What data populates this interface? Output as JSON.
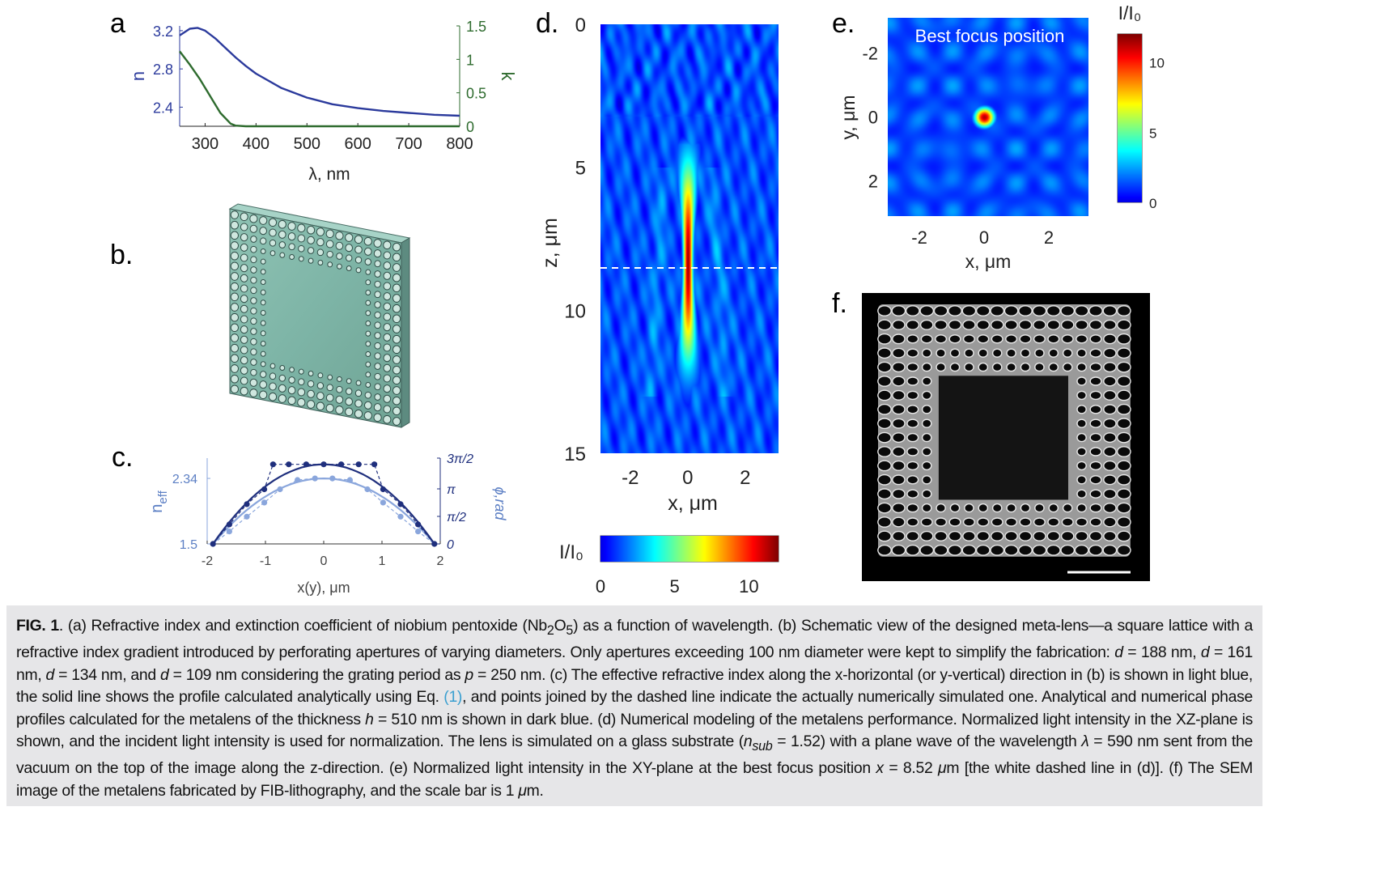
{
  "panel_labels": {
    "a": "a",
    "b": "b.",
    "c": "c.",
    "d": "d.",
    "e": "e.",
    "f": "f."
  },
  "colors": {
    "blue": "#2b3a9c",
    "green": "#2e6b2e",
    "light_blue": "#8aa6dc",
    "dark_blue": "#1f2f7d"
  },
  "chart_data": [
    {
      "id": "a",
      "type": "line",
      "xlabel": "λ, nm",
      "ylabel": "n",
      "y2label": "k",
      "xlim": [
        250,
        800
      ],
      "ylim": [
        2.2,
        3.25
      ],
      "y2lim": [
        0,
        1.5
      ],
      "xticks": [
        "300",
        "400",
        "500",
        "600",
        "700",
        "800"
      ],
      "yticks": [
        "3.2",
        "2.8",
        "2.4"
      ],
      "y2ticks": [
        "1.5",
        "1",
        "0.5",
        "0"
      ],
      "series": [
        {
          "axis": "left",
          "color": "#2b3a9c",
          "x": [
            250,
            270,
            285,
            300,
            320,
            340,
            360,
            380,
            400,
            450,
            500,
            550,
            600,
            650,
            700,
            750,
            800
          ],
          "y": [
            3.15,
            3.22,
            3.23,
            3.2,
            3.12,
            3.02,
            2.92,
            2.83,
            2.75,
            2.6,
            2.5,
            2.43,
            2.39,
            2.36,
            2.34,
            2.32,
            2.31
          ]
        },
        {
          "axis": "right",
          "color": "#2e6b2e",
          "x": [
            250,
            270,
            290,
            310,
            330,
            350,
            360,
            380,
            400,
            500,
            600,
            700,
            800
          ],
          "y": [
            1.12,
            0.92,
            0.7,
            0.45,
            0.2,
            0.04,
            0.01,
            0.0,
            0.0,
            0.0,
            0.0,
            0.0,
            0.0
          ]
        }
      ]
    },
    {
      "id": "c",
      "type": "line",
      "xlabel": "x(y), μm",
      "ylabel": "n_eff",
      "y2label": "ϕ,rad",
      "xlim": [
        -2,
        2
      ],
      "ylim": [
        1.5,
        2.6
      ],
      "xticks": [
        "-2",
        "-1",
        "0",
        "1",
        "2"
      ],
      "yticks": [
        "2.34",
        "1.5"
      ],
      "y2ticks": [
        "3π/2",
        "π",
        "π/2",
        "0"
      ],
      "series": [
        {
          "name": "n_eff analytical",
          "color": "#8aa6dc",
          "style": "solid",
          "x": [
            -1.9,
            -1.5,
            -1.0,
            -0.5,
            0,
            0.5,
            1.0,
            1.5,
            1.9
          ],
          "y": [
            1.5,
            1.77,
            2.07,
            2.27,
            2.34,
            2.27,
            2.07,
            1.77,
            1.5
          ]
        },
        {
          "name": "n_eff numerical",
          "color": "#8aa6dc",
          "style": "dashed",
          "x": [
            -1.9,
            -1.62,
            -1.32,
            -1.02,
            -0.75,
            -0.45,
            -0.15,
            0.15,
            0.45,
            0.75,
            1.02,
            1.32,
            1.62,
            1.9
          ],
          "y": [
            1.5,
            1.66,
            1.85,
            2.03,
            2.2,
            2.32,
            2.34,
            2.34,
            2.32,
            2.2,
            2.03,
            1.85,
            1.66,
            1.5
          ]
        },
        {
          "name": "phase analytical",
          "color": "#1f2f7d",
          "style": "solid",
          "x": [
            -1.9,
            -1.5,
            -1.0,
            -0.5,
            0,
            0.5,
            1.0,
            1.5,
            1.9
          ],
          "y": [
            1.5,
            1.88,
            2.2,
            2.45,
            2.52,
            2.45,
            2.2,
            1.88,
            1.5
          ]
        },
        {
          "name": "phase numerical",
          "color": "#1f2f7d",
          "style": "dashed",
          "x": [
            -1.9,
            -1.62,
            -1.32,
            -1.02,
            -0.87,
            -0.6,
            -0.3,
            0,
            0.3,
            0.6,
            0.87,
            1.02,
            1.32,
            1.62,
            1.9
          ],
          "y": [
            1.5,
            1.75,
            2.01,
            2.2,
            2.52,
            2.52,
            2.52,
            2.52,
            2.52,
            2.52,
            2.52,
            2.2,
            2.01,
            1.75,
            1.5
          ]
        }
      ]
    },
    {
      "id": "d",
      "type": "heatmap",
      "xlabel": "x, μm",
      "ylabel": "z, μm",
      "xticks": [
        "-2",
        "0",
        "2"
      ],
      "yticks": [
        "0",
        "5",
        "10",
        "15"
      ],
      "colorbar_label": "I/I₀",
      "colorbar_ticks": [
        "0",
        "5",
        "10"
      ],
      "focus_z": 8.52
    },
    {
      "id": "e",
      "type": "heatmap",
      "title": "Best focus position",
      "xlabel": "x, μm",
      "ylabel": "y, μm",
      "xticks": [
        "-2",
        "0",
        "2"
      ],
      "yticks": [
        "-2",
        "0",
        "2"
      ],
      "colorbar_label": "I/I₀",
      "colorbar_ticks": [
        "10",
        "5",
        "0"
      ]
    }
  ],
  "caption": {
    "fig_label": "FIG. 1",
    "part1": ". (a) Refractive index and extinction coefficient of niobium pentoxide (Nb",
    "sub1": "2",
    "part2": "O",
    "sub2": "5",
    "part3": ") as a function of wavelength. (b) Schematic view of the designed meta-lens—a square lattice with a refractive index gradient introduced by perforating apertures of varying diameters. Only apertures exceeding 100 nm diameter were kept to simplify the fabrication: ",
    "d1": "d",
    "part4": " = 188 nm, ",
    "d2": "d",
    "part5": " = 161 nm, ",
    "d3": "d",
    "part6": " = 134 nm, and ",
    "d4": "d",
    "part7": " = 109 nm considering the grating period as ",
    "p": "p",
    "part8": " = 250 nm. (c) The effective refractive index along the x-horizontal (or y-vertical) direction in (b) is shown in light blue, the solid line shows the profile calculated analytically using Eq. ",
    "eq_ref": "(1)",
    "part9": ", and points joined by the dashed line indicate the actually numerically simulated one. Analytical and numerical phase profiles calculated for the metalens of the thickness ",
    "h": "h",
    "part10": " = 510 nm is shown in dark blue. (d) Numerical modeling of the metalens performance. Normalized light intensity in the XZ-plane is shown, and the incident light intensity is used for normalization. The lens is simulated on a glass substrate (",
    "n_sub": "n",
    "n_sub_sub": "sub",
    "part11": " = 1.52) with a plane wave of the wavelength ",
    "lambda": "λ",
    "part12": " = 590 nm sent from the vacuum on the top of the image along the z-direction. (e) Normalized light intensity in the XY-plane at the best focus position ",
    "x": "x",
    "part13": " = 8.52 ",
    "mu": "μ",
    "part14": "m [the white dashed line in (d)]. (f) The SEM image of the metalens fabricated by FIB-lithography, and the scale bar is 1 ",
    "mu2": "μ",
    "part15": "m."
  }
}
